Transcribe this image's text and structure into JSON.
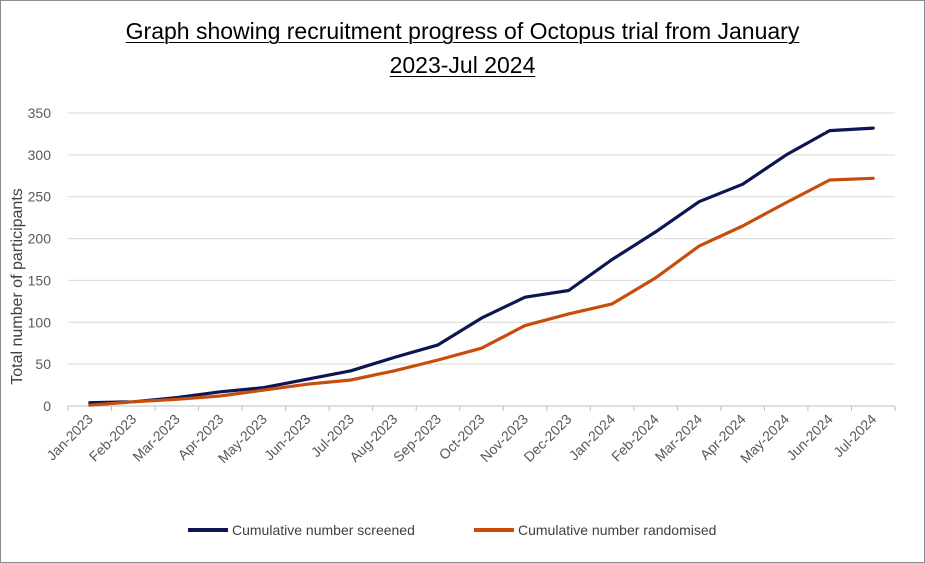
{
  "chart": {
    "title_line1": "Graph showing recruitment progress of Octopus trial from January",
    "title_line2": "2023-Jul 2024",
    "ylabel": "Total number of participants",
    "legend": [
      {
        "label": "Cumulative number screened",
        "color": "#0d1652"
      },
      {
        "label": "Cumulative number randomised",
        "color": "#c84d0c"
      }
    ]
  },
  "chart_data": {
    "type": "line",
    "title": "Graph showing recruitment progress of Octopus trial from January 2023-Jul 2024",
    "xlabel": "",
    "ylabel": "Total number of participants",
    "ylim": [
      0,
      350
    ],
    "yticks": [
      0,
      50,
      100,
      150,
      200,
      250,
      300,
      350
    ],
    "grid": true,
    "legend_position": "bottom",
    "categories": [
      "Jan-2023",
      "Feb-2023",
      "Mar-2023",
      "Apr-2023",
      "May-2023",
      "Jun-2023",
      "Jul-2023",
      "Aug-2023",
      "Sep-2023",
      "Oct-2023",
      "Nov-2023",
      "Dec-2023",
      "Jan-2024",
      "Feb-2024",
      "Mar-2024",
      "Apr-2024",
      "May-2024",
      "Jun-2024",
      "Jul-2024"
    ],
    "series": [
      {
        "name": "Cumulative number screened",
        "color": "#0d1652",
        "values": [
          4,
          5,
          10,
          17,
          22,
          32,
          42,
          58,
          73,
          105,
          130,
          138,
          175,
          208,
          244,
          265,
          300,
          329,
          332
        ]
      },
      {
        "name": "Cumulative number randomised",
        "color": "#c84d0c",
        "values": [
          1,
          5,
          8,
          12,
          19,
          26,
          31,
          42,
          55,
          69,
          96,
          110,
          122,
          153,
          191,
          215,
          243,
          270,
          272
        ]
      }
    ]
  }
}
